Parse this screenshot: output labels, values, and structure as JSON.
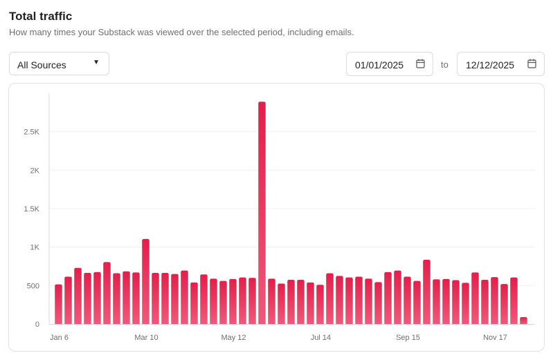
{
  "header": {
    "title": "Total traffic",
    "subtitle": "How many times your Substack was viewed over the selected period, including emails."
  },
  "filters": {
    "source": "All Sources",
    "start_date": "01/01/2025",
    "to_label": "to",
    "end_date": "12/12/2025"
  },
  "colors": {
    "bar_top": "#e31f4b",
    "bar_bottom": "#f0587a",
    "grid": "#f0f0f0",
    "axis": "#d9d9d9"
  },
  "chart_data": {
    "type": "bar",
    "title": "",
    "xlabel": "",
    "ylabel": "",
    "ylim": [
      0,
      3000
    ],
    "yticks": [
      0,
      500,
      1000,
      1500,
      2000,
      2500
    ],
    "ytick_labels": [
      "0",
      "500",
      "1K",
      "1.5K",
      "2K",
      "2.5K"
    ],
    "grid": true,
    "x_tick_labels": [
      {
        "index": 0,
        "label": "Jan 6"
      },
      {
        "index": 9,
        "label": "Mar 10"
      },
      {
        "index": 18,
        "label": "May 12"
      },
      {
        "index": 27,
        "label": "Jul 14"
      },
      {
        "index": 36,
        "label": "Sep 15"
      },
      {
        "index": 45,
        "label": "Nov 17"
      }
    ],
    "values": [
      515,
      615,
      730,
      665,
      675,
      805,
      660,
      685,
      670,
      1105,
      665,
      665,
      650,
      695,
      540,
      645,
      590,
      560,
      585,
      605,
      600,
      2890,
      590,
      525,
      575,
      575,
      540,
      510,
      660,
      625,
      605,
      615,
      590,
      545,
      675,
      695,
      615,
      560,
      835,
      580,
      585,
      570,
      535,
      670,
      575,
      610,
      520,
      605,
      90
    ]
  }
}
